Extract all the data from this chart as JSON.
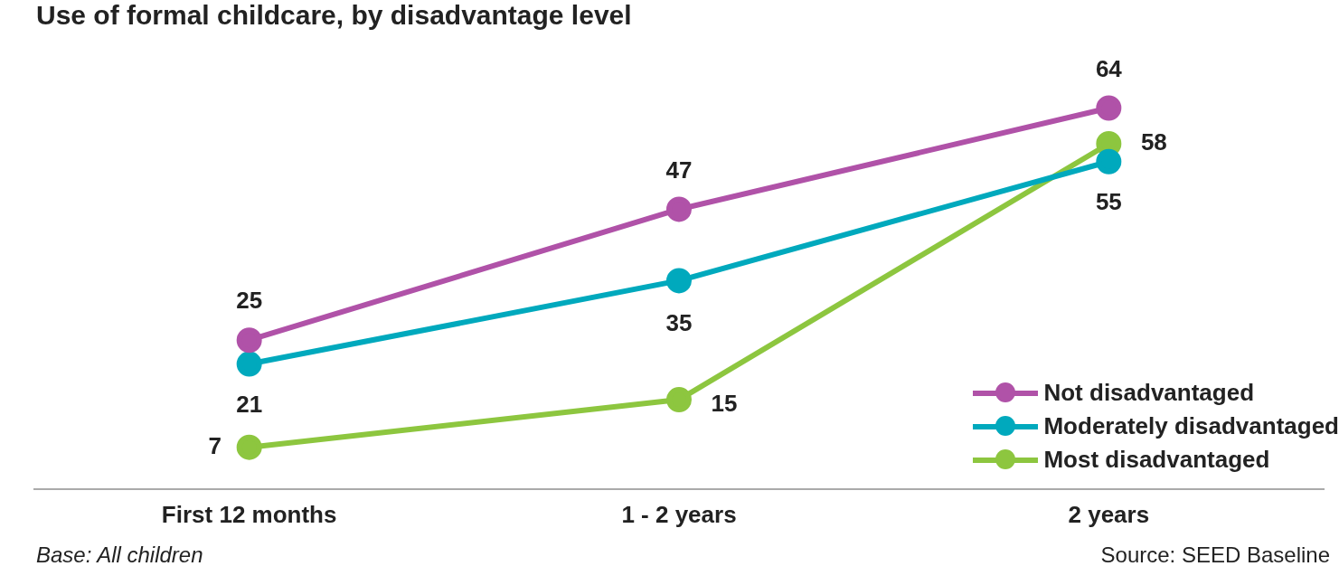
{
  "chart_data": {
    "type": "line",
    "title": "Use of formal childcare, by disadvantage level",
    "categories": [
      "First 12 months",
      "1 - 2 years",
      "2 years"
    ],
    "series": [
      {
        "name": "Not disadvantaged",
        "color": "#b052a8",
        "values": [
          25,
          47,
          64
        ]
      },
      {
        "name": "Moderately disadvantaged",
        "color": "#00a9bd",
        "values": [
          21,
          35,
          55
        ]
      },
      {
        "name": "Most disadvantaged",
        "color": "#8dc63f",
        "values": [
          7,
          15,
          58
        ]
      }
    ],
    "tick_labels": "x",
    "grid": false,
    "legend": "right",
    "marker": "circle",
    "line_style": "solid",
    "data_labels": true,
    "annotations": [
      "Base: All children",
      "Source: SEED Baseline"
    ]
  }
}
